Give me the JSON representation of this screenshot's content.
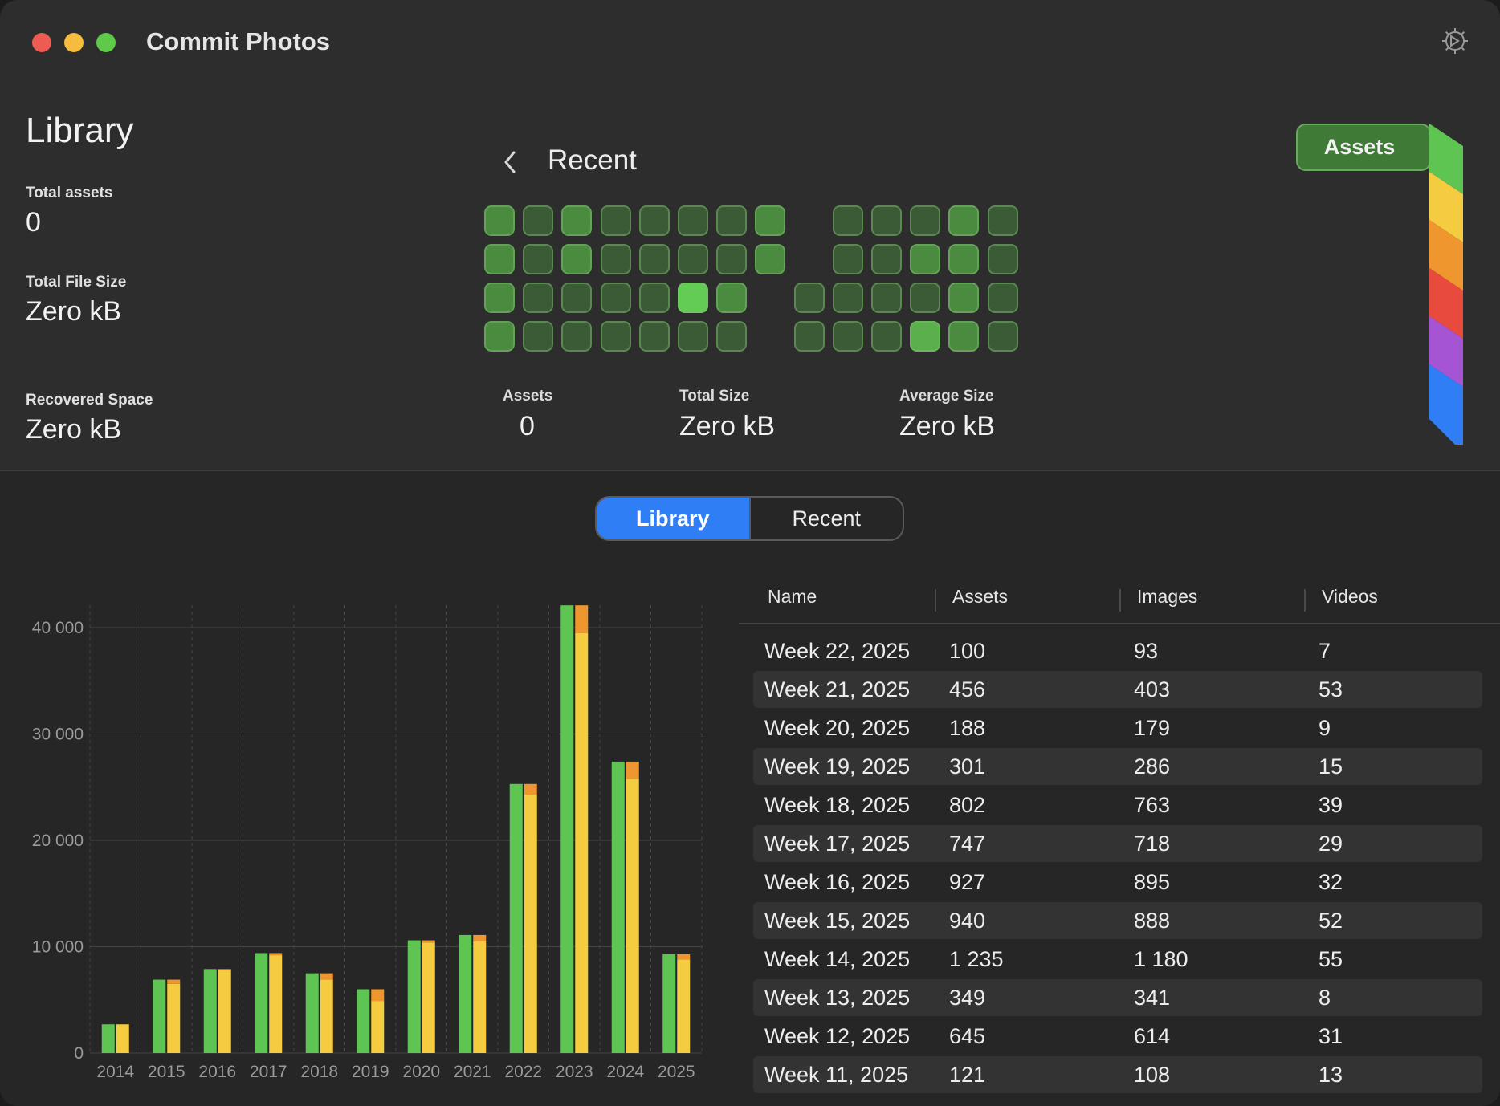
{
  "app": {
    "title": "Commit Photos"
  },
  "window_controls": {
    "close_color": "#ee5b52",
    "minimize_color": "#f5bc3f",
    "zoom_color": "#5fc94a"
  },
  "library": {
    "title": "Library",
    "total_assets_label": "Total assets",
    "total_assets_value": "0",
    "total_file_size_label": "Total File Size",
    "total_file_size_value": "Zero kB",
    "recovered_space_label": "Recovered Space",
    "recovered_space_value": "Zero kB"
  },
  "recent": {
    "title": "Recent",
    "grid_rows": [
      [
        2,
        1,
        2,
        1,
        1,
        1,
        1,
        2,
        null,
        1,
        1,
        1,
        2,
        1
      ],
      [
        2,
        1,
        2,
        1,
        1,
        1,
        1,
        2,
        null,
        1,
        1,
        2,
        2,
        1
      ],
      [
        2,
        1,
        1,
        1,
        1,
        4,
        2,
        null,
        1,
        1,
        1,
        1,
        2,
        1
      ],
      [
        2,
        1,
        1,
        1,
        1,
        1,
        1,
        null,
        1,
        1,
        1,
        3,
        2,
        1
      ]
    ],
    "summary": {
      "assets_label": "Assets",
      "assets_value": "0",
      "total_size_label": "Total Size",
      "total_size_value": "Zero kB",
      "average_size_label": "Average Size",
      "average_size_value": "Zero kB"
    }
  },
  "assets_tab": {
    "label": "Assets",
    "ribbon_colors": [
      "#5ec452",
      "#f5cc40",
      "#f0962e",
      "#e94a3e",
      "#a555d4",
      "#2f7ef6"
    ]
  },
  "segmented_control": {
    "options": [
      "Library",
      "Recent"
    ],
    "selected": "Library"
  },
  "chart_data": {
    "type": "bar",
    "categories": [
      "2014",
      "2015",
      "2016",
      "2017",
      "2018",
      "2019",
      "2020",
      "2021",
      "2022",
      "2023",
      "2024",
      "2025"
    ],
    "series": [
      {
        "values": [
          2700,
          6900,
          7900,
          9400,
          7500,
          6000,
          10600,
          11100,
          25300,
          42100,
          27400,
          9300
        ],
        "color": "#5ec452"
      },
      {
        "values": [
          2700,
          6500,
          7800,
          9200,
          6900,
          4900,
          10400,
          10500,
          24300,
          39500,
          25800,
          8800
        ],
        "color": "#f5cc40",
        "stack_top_color": "#f0962e",
        "stack_top_values": [
          0,
          400,
          100,
          200,
          600,
          1100,
          200,
          600,
          1000,
          2600,
          1600,
          500
        ]
      }
    ],
    "yticks": [
      "0",
      "10 000",
      "20 000",
      "30 000",
      "40 000"
    ],
    "ylim": [
      0,
      42000
    ],
    "grid": true
  },
  "table": {
    "columns": [
      "Name",
      "Assets",
      "Images",
      "Videos"
    ],
    "rows": [
      [
        "Week 22, 2025",
        "100",
        "93",
        "7"
      ],
      [
        "Week 21, 2025",
        "456",
        "403",
        "53"
      ],
      [
        "Week 20, 2025",
        "188",
        "179",
        "9"
      ],
      [
        "Week 19, 2025",
        "301",
        "286",
        "15"
      ],
      [
        "Week 18, 2025",
        "802",
        "763",
        "39"
      ],
      [
        "Week 17, 2025",
        "747",
        "718",
        "29"
      ],
      [
        "Week 16, 2025",
        "927",
        "895",
        "32"
      ],
      [
        "Week 15, 2025",
        "940",
        "888",
        "52"
      ],
      [
        "Week 14, 2025",
        "1 235",
        "1 180",
        "55"
      ],
      [
        "Week 13, 2025",
        "349",
        "341",
        "8"
      ],
      [
        "Week 12, 2025",
        "645",
        "614",
        "31"
      ],
      [
        "Week 11, 2025",
        "121",
        "108",
        "13"
      ]
    ]
  }
}
